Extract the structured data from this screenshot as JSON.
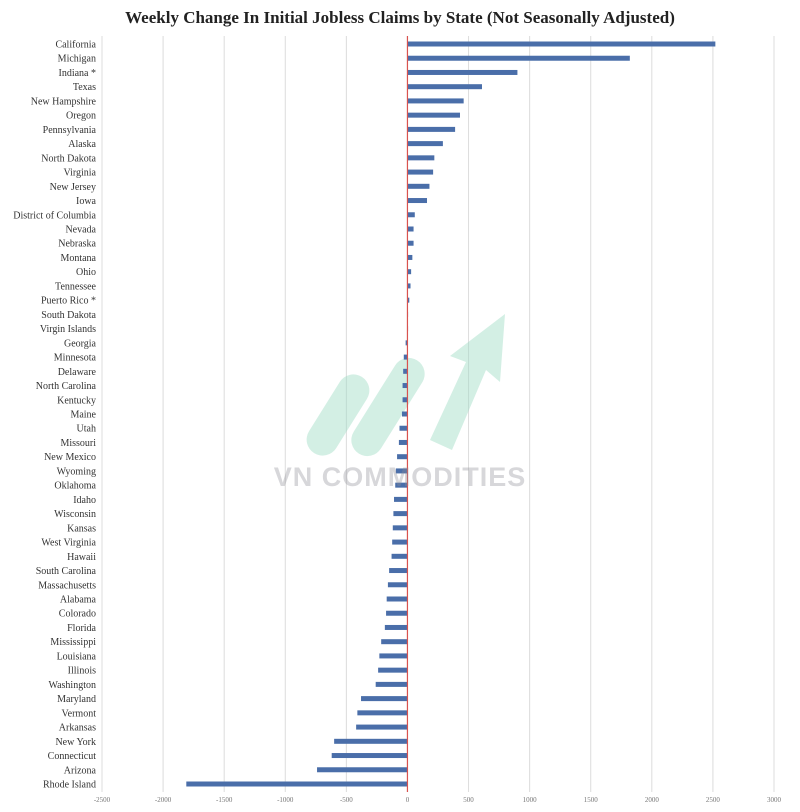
{
  "chart_data": {
    "type": "bar",
    "orientation": "horizontal",
    "title": "Weekly Change In Initial Jobless Claims by State (Not Seasonally Adjusted)",
    "xlabel": "",
    "ylabel": "",
    "xlim": [
      -2500,
      3000
    ],
    "xticks": [
      "-2500",
      "-2000",
      "-1500",
      "-1000",
      "-500",
      "0",
      "500",
      "1000",
      "1500",
      "2000",
      "2500",
      "3000"
    ],
    "grid": true,
    "zero_line_color": "#d9534f",
    "bar_color": "#4a6ea9",
    "categories": [
      "California",
      "Michigan",
      "Indiana *",
      "Texas",
      "New Hampshire",
      "Oregon",
      "Pennsylvania",
      "Alaska",
      "North Dakota",
      "Virginia",
      "New Jersey",
      "Iowa",
      "District of Columbia",
      "Nevada",
      "Nebraska",
      "Montana",
      "Ohio",
      "Tennessee",
      "Puerto Rico *",
      "South Dakota",
      "Virgin Islands",
      "Georgia",
      "Minnesota",
      "Delaware",
      "North Carolina",
      "Kentucky",
      "Maine",
      "Utah",
      "Missouri",
      "New Mexico",
      "Wyoming",
      "Oklahoma",
      "Idaho",
      "Wisconsin",
      "Kansas",
      "West Virginia",
      "Hawaii",
      "South Carolina",
      "Massachusetts",
      "Alabama",
      "Colorado",
      "Florida",
      "Mississippi",
      "Louisiana",
      "Illinois",
      "Washington",
      "Maryland",
      "Vermont",
      "Arkansas",
      "New York",
      "Connecticut",
      "Arizona",
      "Rhode Island"
    ],
    "values": [
      2520,
      1820,
      900,
      610,
      460,
      430,
      390,
      290,
      220,
      210,
      180,
      160,
      60,
      50,
      50,
      40,
      30,
      25,
      15,
      5,
      2,
      -15,
      -30,
      -35,
      -40,
      -40,
      -45,
      -65,
      -70,
      -85,
      -95,
      -100,
      -110,
      -115,
      -120,
      -125,
      -130,
      -150,
      -160,
      -170,
      -175,
      -185,
      -215,
      -230,
      -240,
      -260,
      -380,
      -410,
      -420,
      -600,
      -620,
      -740,
      -1810
    ]
  },
  "watermark": {
    "text": "VN COMMODITIES",
    "colors": [
      "#7fd3b6",
      "#9fdcc5"
    ]
  }
}
